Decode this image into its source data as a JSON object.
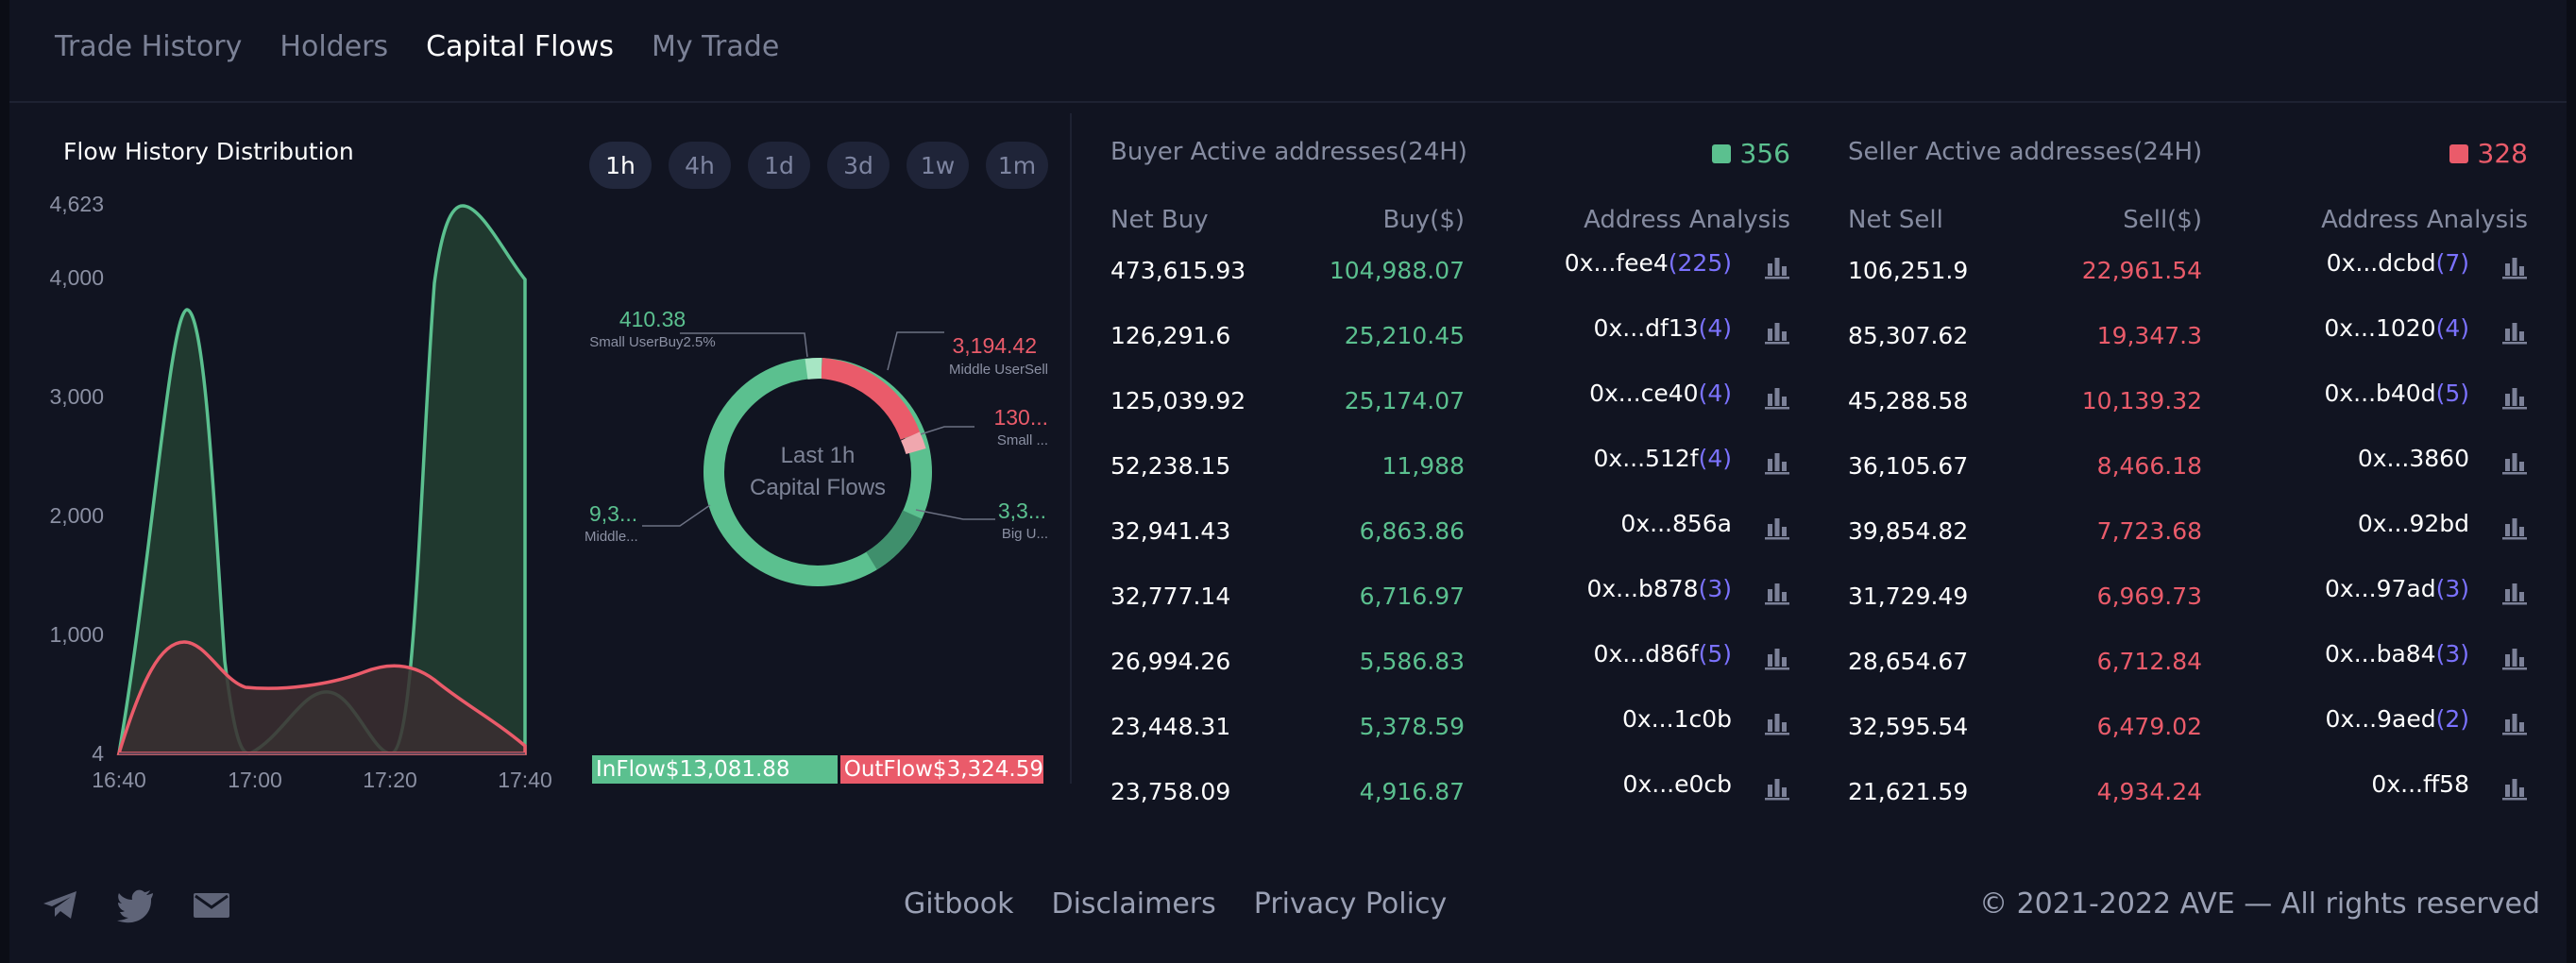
{
  "tabs": [
    {
      "label": "Trade History",
      "active": false
    },
    {
      "label": "Holders",
      "active": false
    },
    {
      "label": "Capital Flows",
      "active": true
    },
    {
      "label": "My Trade",
      "active": false
    }
  ],
  "flow_chart": {
    "title": "Flow History Distribution",
    "y_ticks": [
      "4,623",
      "4,000",
      "3,000",
      "2,000",
      "1,000",
      "4"
    ],
    "x_ticks": [
      "16:40",
      "17:00",
      "17:20",
      "17:40"
    ]
  },
  "time_filters": [
    {
      "label": "1h",
      "active": true
    },
    {
      "label": "4h",
      "active": false
    },
    {
      "label": "1d",
      "active": false
    },
    {
      "label": "3d",
      "active": false
    },
    {
      "label": "1w",
      "active": false
    },
    {
      "label": "1m",
      "active": false
    }
  ],
  "donut": {
    "center_line1": "Last 1h",
    "center_line2": "Capital Flows",
    "labels": [
      {
        "value": "410.38",
        "name": "Small UserBuy2.5%",
        "color": "#5bc08f"
      },
      {
        "value": "3,194.42",
        "name": "Middle UserSell",
        "color": "#ea5b6a"
      },
      {
        "value": "130...",
        "name": "Small ...",
        "color": "#ea5b6a"
      },
      {
        "value": "3,3...",
        "name": "Big U...",
        "color": "#5bc08f"
      },
      {
        "value": "9,3...",
        "name": "Middle...",
        "color": "#5bc08f"
      }
    ]
  },
  "flows": {
    "inflow": "InFlow$13,081.88",
    "outflow": "OutFlow$3,324.59"
  },
  "buyers": {
    "title": "Buyer Active addresses(24H)",
    "count": "356",
    "headers": {
      "c1": "Net Buy",
      "c2": "Buy($)",
      "c3": "Address Analysis"
    },
    "rows": [
      {
        "net": "473,615.93",
        "amount": "104,988.07",
        "addr": "0x...fee4",
        "cnt": "(225)"
      },
      {
        "net": "126,291.6",
        "amount": "25,210.45",
        "addr": "0x...df13",
        "cnt": "(4)"
      },
      {
        "net": "125,039.92",
        "amount": "25,174.07",
        "addr": "0x...ce40",
        "cnt": "(4)"
      },
      {
        "net": "52,238.15",
        "amount": "11,988",
        "addr": "0x...512f",
        "cnt": "(4)"
      },
      {
        "net": "32,941.43",
        "amount": "6,863.86",
        "addr": "0x...856a",
        "cnt": ""
      },
      {
        "net": "32,777.14",
        "amount": "6,716.97",
        "addr": "0x...b878",
        "cnt": "(3)"
      },
      {
        "net": "26,994.26",
        "amount": "5,586.83",
        "addr": "0x...d86f",
        "cnt": "(5)"
      },
      {
        "net": "23,448.31",
        "amount": "5,378.59",
        "addr": "0x...1c0b",
        "cnt": ""
      },
      {
        "net": "23,758.09",
        "amount": "4,916.87",
        "addr": "0x...e0cb",
        "cnt": ""
      }
    ]
  },
  "sellers": {
    "title": "Seller Active addresses(24H)",
    "count": "328",
    "headers": {
      "c1": "Net Sell",
      "c2": "Sell($)",
      "c3": "Address Analysis"
    },
    "rows": [
      {
        "net": "106,251.9",
        "amount": "22,961.54",
        "addr": "0x...dcbd",
        "cnt": "(7)"
      },
      {
        "net": "85,307.62",
        "amount": "19,347.3",
        "addr": "0x...1020",
        "cnt": "(4)"
      },
      {
        "net": "45,288.58",
        "amount": "10,139.32",
        "addr": "0x...b40d",
        "cnt": "(5)"
      },
      {
        "net": "36,105.67",
        "amount": "8,466.18",
        "addr": "0x...3860",
        "cnt": ""
      },
      {
        "net": "39,854.82",
        "amount": "7,723.68",
        "addr": "0x...92bd",
        "cnt": ""
      },
      {
        "net": "31,729.49",
        "amount": "6,969.73",
        "addr": "0x...97ad",
        "cnt": "(3)"
      },
      {
        "net": "28,654.67",
        "amount": "6,712.84",
        "addr": "0x...ba84",
        "cnt": "(3)"
      },
      {
        "net": "32,595.54",
        "amount": "6,479.02",
        "addr": "0x...9aed",
        "cnt": "(2)"
      },
      {
        "net": "21,621.59",
        "amount": "4,934.24",
        "addr": "0x...ff58",
        "cnt": ""
      }
    ]
  },
  "footer": {
    "icons": [
      "telegram-icon",
      "twitter-icon",
      "mail-icon"
    ],
    "links": [
      "Gitbook",
      "Disclaimers",
      "Privacy Policy"
    ],
    "copyright": "© 2021-2022 AVE — All rights reserved"
  },
  "colors": {
    "buy": "#5bc08f",
    "sell": "#ea5b6a",
    "count": "#7b72ff",
    "background": "#111421"
  }
}
